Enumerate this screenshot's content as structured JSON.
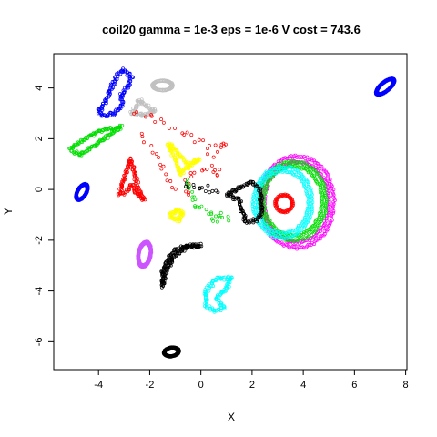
{
  "chart_data": {
    "type": "scatter",
    "title": "coil20 gamma = 1e-3 eps = 1e-6 V cost = 743.6",
    "xlabel": "X",
    "ylabel": "Y",
    "xlim": [
      -5.75,
      8.05
    ],
    "ylim": [
      -7.1,
      5.35
    ],
    "xticks": [
      -4,
      -2,
      0,
      2,
      4,
      6,
      8
    ],
    "yticks": [
      -6,
      -4,
      -2,
      0,
      2,
      4
    ],
    "grid": false,
    "legend": "none",
    "marker": "open-circle",
    "clusters": [
      {
        "shape": "ring",
        "color": "#0000ff",
        "cx": 7.2,
        "cy": 4.05,
        "rx": 0.45,
        "ry": 0.18,
        "angle": 40,
        "n": 70
      },
      {
        "shape": "ring",
        "color": "#0000ff",
        "cx": -4.65,
        "cy": -0.1,
        "rx": 0.35,
        "ry": 0.18,
        "angle": 60,
        "n": 60
      },
      {
        "shape": "ring",
        "color": "#cc55ff",
        "cx": -2.2,
        "cy": -2.55,
        "rx": 0.5,
        "ry": 0.25,
        "angle": 80,
        "n": 70
      },
      {
        "shape": "ring",
        "color": "#000000",
        "cx": -1.15,
        "cy": -6.4,
        "rx": 0.3,
        "ry": 0.18,
        "angle": 10,
        "n": 40
      },
      {
        "shape": "ring",
        "color": "#c0c0c0",
        "cx": -1.5,
        "cy": 4.1,
        "rx": 0.4,
        "ry": 0.2,
        "angle": 0,
        "n": 40
      },
      {
        "shape": "ring",
        "color": "#ff00ff",
        "cx": 3.75,
        "cy": -0.5,
        "rx": 1.45,
        "ry": 1.8,
        "angle": 0,
        "n": 160
      },
      {
        "shape": "ring",
        "color": "#00dd00",
        "cx": 3.6,
        "cy": -0.45,
        "rx": 1.3,
        "ry": 1.55,
        "angle": 0,
        "n": 150
      },
      {
        "shape": "ring",
        "color": "#00ffff",
        "cx": 3.2,
        "cy": -0.5,
        "rx": 1.15,
        "ry": 1.4,
        "angle": 0,
        "n": 120
      },
      {
        "shape": "ring",
        "color": "#ff0000",
        "cx": 3.25,
        "cy": -0.55,
        "rx": 0.35,
        "ry": 0.35,
        "angle": 0,
        "n": 30
      },
      {
        "shape": "path",
        "color": "#0000ff",
        "n": 70,
        "pts": [
          [
            -4.0,
            3.1
          ],
          [
            -3.7,
            3.5
          ],
          [
            -3.5,
            4.0
          ],
          [
            -3.3,
            4.5
          ],
          [
            -3.0,
            4.7
          ],
          [
            -2.7,
            4.4
          ],
          [
            -2.9,
            4.0
          ],
          [
            -3.1,
            3.7
          ],
          [
            -3.1,
            3.3
          ],
          [
            -3.4,
            3.0
          ],
          [
            -3.8,
            2.9
          ],
          [
            -4.0,
            3.1
          ]
        ]
      },
      {
        "shape": "path",
        "color": "#00dd00",
        "n": 70,
        "pts": [
          [
            -5.1,
            1.6
          ],
          [
            -4.5,
            2.0
          ],
          [
            -4.0,
            2.3
          ],
          [
            -3.4,
            2.4
          ],
          [
            -3.1,
            2.5
          ],
          [
            -3.6,
            2.1
          ],
          [
            -4.2,
            1.7
          ],
          [
            -4.7,
            1.4
          ],
          [
            -5.1,
            1.5
          ]
        ]
      },
      {
        "shape": "path",
        "color": "#ff0000",
        "n": 70,
        "pts": [
          [
            -3.2,
            -0.2
          ],
          [
            -2.95,
            0.5
          ],
          [
            -2.75,
            1.2
          ],
          [
            -2.6,
            0.7
          ],
          [
            -2.45,
            0.0
          ],
          [
            -2.2,
            -0.4
          ],
          [
            -2.5,
            -0.2
          ],
          [
            -2.7,
            0.2
          ],
          [
            -2.9,
            -0.1
          ],
          [
            -3.2,
            -0.2
          ]
        ]
      },
      {
        "shape": "path",
        "color": "#ffff00",
        "n": 60,
        "pts": [
          [
            -1.3,
            1.8
          ],
          [
            -1.0,
            1.2
          ],
          [
            -0.8,
            0.6
          ],
          [
            -0.5,
            0.9
          ],
          [
            -0.1,
            1.2
          ],
          [
            -0.5,
            1.0
          ],
          [
            -0.8,
            1.3
          ],
          [
            -1.1,
            1.7
          ],
          [
            -1.3,
            1.8
          ]
        ]
      },
      {
        "shape": "path",
        "color": "#ffff00",
        "n": 30,
        "pts": [
          [
            -1.2,
            -1.0
          ],
          [
            -0.9,
            -0.8
          ],
          [
            -0.7,
            -0.95
          ],
          [
            -0.9,
            -1.2
          ],
          [
            -1.2,
            -1.1
          ]
        ]
      },
      {
        "shape": "path",
        "color": "#00ffff",
        "n": 60,
        "pts": [
          [
            0.2,
            -4.0
          ],
          [
            0.6,
            -3.5
          ],
          [
            1.2,
            -3.5
          ],
          [
            0.9,
            -4.0
          ],
          [
            0.6,
            -4.3
          ],
          [
            0.9,
            -4.6
          ],
          [
            0.6,
            -4.8
          ],
          [
            0.2,
            -4.6
          ],
          [
            0.2,
            -4.0
          ]
        ]
      },
      {
        "shape": "path",
        "color": "#000000",
        "n": 80,
        "pts": [
          [
            -1.5,
            -3.8
          ],
          [
            -1.4,
            -3.3
          ],
          [
            -1.1,
            -2.7
          ],
          [
            -0.6,
            -2.3
          ],
          [
            0.0,
            -2.2
          ],
          [
            -0.5,
            -2.2
          ],
          [
            -1.0,
            -2.4
          ],
          [
            -1.3,
            -2.8
          ],
          [
            -1.5,
            -3.3
          ],
          [
            -1.5,
            -3.8
          ]
        ]
      },
      {
        "shape": "path",
        "color": "#000000",
        "n": 70,
        "pts": [
          [
            1.0,
            -0.2
          ],
          [
            1.6,
            0.1
          ],
          [
            2.0,
            0.3
          ],
          [
            2.3,
            0.0
          ],
          [
            2.4,
            -0.8
          ],
          [
            2.2,
            -1.2
          ],
          [
            1.8,
            -1.3
          ],
          [
            1.6,
            -0.9
          ],
          [
            1.5,
            -0.4
          ],
          [
            1.0,
            -0.2
          ]
        ]
      },
      {
        "shape": "path",
        "color": "#c0c0c0",
        "n": 40,
        "pts": [
          [
            -2.7,
            3.0
          ],
          [
            -2.4,
            3.5
          ],
          [
            -2.0,
            3.2
          ],
          [
            -1.8,
            3.1
          ],
          [
            -2.2,
            2.9
          ],
          [
            -2.7,
            3.0
          ]
        ]
      },
      {
        "shape": "sparse",
        "color": "#ff0000",
        "n": 60,
        "pts": [
          [
            -2.6,
            3.0
          ],
          [
            -2.0,
            2.9
          ],
          [
            -1.3,
            2.6
          ],
          [
            -0.6,
            2.2
          ],
          [
            -0.1,
            1.9
          ],
          [
            0.6,
            1.7
          ],
          [
            1.1,
            1.8
          ],
          [
            0.3,
            1.5
          ],
          [
            0.5,
            0.9
          ],
          [
            0.7,
            0.5
          ],
          [
            0.4,
            0.9
          ],
          [
            -0.3,
            0.7
          ],
          [
            -0.6,
            0.3
          ],
          [
            -0.4,
            -0.1
          ],
          [
            -1.0,
            0.0
          ],
          [
            -2.0,
            1.7
          ],
          [
            -2.5,
            2.3
          ]
        ]
      },
      {
        "shape": "sparse",
        "color": "#00dd00",
        "n": 30,
        "pts": [
          [
            -0.5,
            0.4
          ],
          [
            -0.2,
            -0.6
          ],
          [
            0.3,
            -0.8
          ],
          [
            0.5,
            -1.2
          ],
          [
            0.8,
            -1.0
          ],
          [
            1.1,
            -1.3
          ]
        ]
      },
      {
        "shape": "sparse",
        "color": "#000000",
        "n": 14,
        "pts": [
          [
            -0.6,
            0.2
          ],
          [
            0.0,
            0.1
          ],
          [
            0.5,
            0.0
          ],
          [
            0.8,
            -0.2
          ]
        ]
      }
    ]
  }
}
